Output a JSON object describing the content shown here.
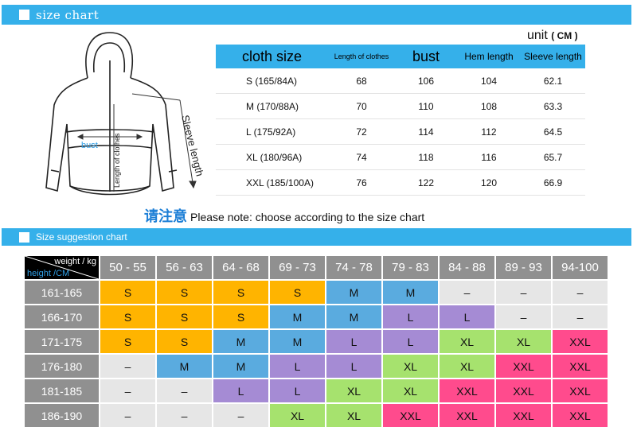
{
  "section1": {
    "title": "size chart"
  },
  "unit": {
    "label": "unit",
    "value": "( CM )"
  },
  "illustration": {
    "sleeve_label": "Sleeve length",
    "bust_label": "bust",
    "length_label": "Length of clothes"
  },
  "size_table": {
    "headers": [
      "cloth size",
      "Length of clothes",
      "bust",
      "Hem length",
      "Sleeve length"
    ],
    "rows": [
      [
        "S (165/84A)",
        "68",
        "106",
        "104",
        "62.1"
      ],
      [
        "M (170/88A)",
        "70",
        "110",
        "108",
        "63.3"
      ],
      [
        "L (175/92A)",
        "72",
        "114",
        "112",
        "64.5"
      ],
      [
        "XL (180/96A)",
        "74",
        "118",
        "116",
        "65.7"
      ],
      [
        "XXL (185/100A)",
        "76",
        "122",
        "120",
        "66.9"
      ]
    ]
  },
  "note": {
    "cn": "请注意",
    "en": "Please note: choose according to the size chart"
  },
  "section2": {
    "title": "Size suggestion chart"
  },
  "suggestion": {
    "corner_weight": "weight / kg",
    "corner_height": "height /CM",
    "weights": [
      "50 - 55",
      "56 - 63",
      "64 - 68",
      "69 - 73",
      "74 - 78",
      "79 - 83",
      "84 - 88",
      "89 - 93",
      "94-100"
    ],
    "rows": [
      {
        "height": "161-165",
        "sizes": [
          "S",
          "S",
          "S",
          "S",
          "M",
          "M",
          "–",
          "–",
          "–"
        ]
      },
      {
        "height": "166-170",
        "sizes": [
          "S",
          "S",
          "S",
          "M",
          "M",
          "L",
          "L",
          "–",
          "–"
        ]
      },
      {
        "height": "171-175",
        "sizes": [
          "S",
          "S",
          "M",
          "M",
          "L",
          "L",
          "XL",
          "XL",
          "XXL"
        ]
      },
      {
        "height": "176-180",
        "sizes": [
          "–",
          "M",
          "M",
          "L",
          "L",
          "XL",
          "XL",
          "XXL",
          "XXL"
        ]
      },
      {
        "height": "181-185",
        "sizes": [
          "–",
          "–",
          "L",
          "L",
          "XL",
          "XL",
          "XXL",
          "XXL",
          "XXL"
        ]
      },
      {
        "height": "186-190",
        "sizes": [
          "–",
          "–",
          "–",
          "XL",
          "XL",
          "XXL",
          "XXL",
          "XXL",
          "XXL"
        ]
      }
    ],
    "colors": {
      "S": "#ffb400",
      "M": "#5aabdf",
      "L": "#a58bd4",
      "XL": "#a6e26e",
      "XXL": "#ff4b8d",
      "none": "#e6e6e6"
    }
  }
}
